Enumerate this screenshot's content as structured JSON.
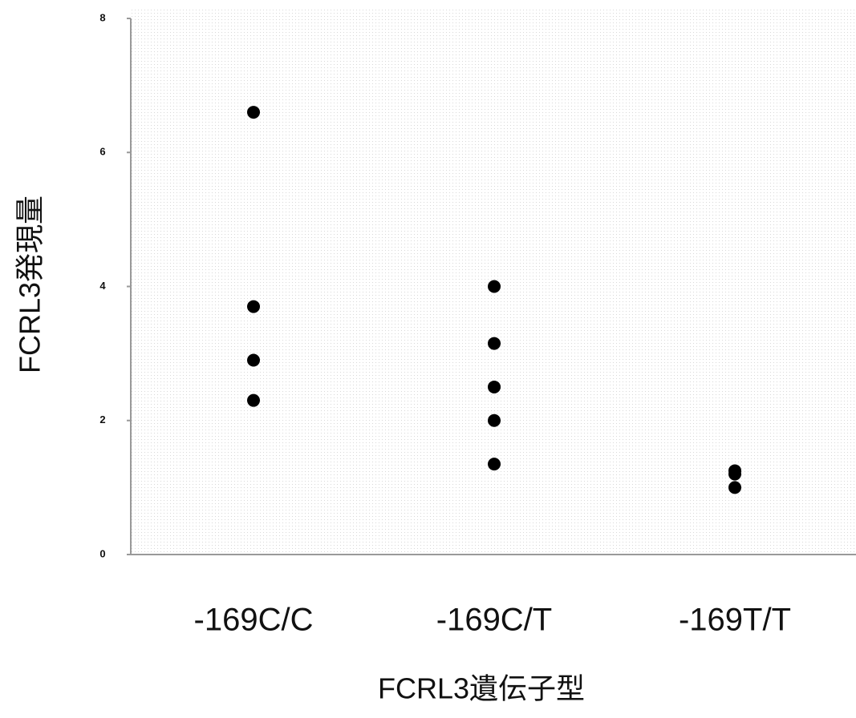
{
  "chart_data": {
    "type": "strip",
    "y_label": "FCRL3発現量",
    "x_label": "FCRL3遺伝子型",
    "categories": [
      "-169C/C",
      "-169C/T",
      "-169T/T"
    ],
    "values": [
      [
        6.6,
        3.7,
        2.9,
        2.3
      ],
      [
        4.0,
        3.15,
        2.5,
        2.0,
        1.35
      ],
      [
        1.25,
        1.2,
        1.0
      ]
    ],
    "color": "#000000",
    "ylim": [
      0,
      8
    ],
    "yticks": [
      0,
      2,
      4,
      6,
      8
    ]
  }
}
